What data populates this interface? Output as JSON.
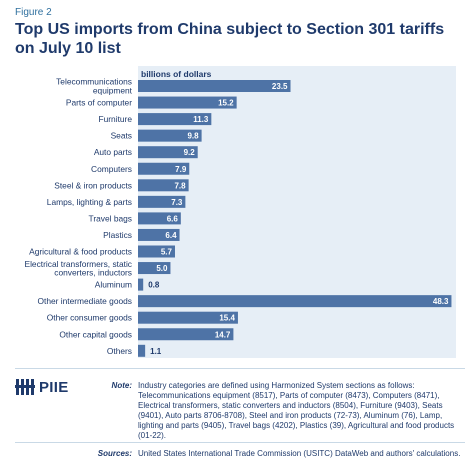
{
  "figure_label": "Figure 2",
  "title": "Top US imports from China subject to Section 301 tariffs on July 10 list",
  "chart_data": {
    "type": "bar",
    "orientation": "horizontal",
    "units_label": "billions of dollars",
    "categories": [
      "Telecommunications equipment",
      "Parts of computer",
      "Furniture",
      "Seats",
      "Auto parts",
      "Computers",
      "Steel & iron products",
      "Lamps, lighting & parts",
      "Travel bags",
      "Plastics",
      "Agricultural & food products",
      "Electrical transformers, static converters, inductors",
      "Aluminum",
      "Other intermediate goods",
      "Other consumer goods",
      "Other capital goods",
      "Others"
    ],
    "category_lines": [
      [
        "Telecommunications",
        "equipment"
      ],
      [
        "Parts of computer"
      ],
      [
        "Furniture"
      ],
      [
        "Seats"
      ],
      [
        "Auto parts"
      ],
      [
        "Computers"
      ],
      [
        "Steel & iron products"
      ],
      [
        "Lamps, lighting & parts"
      ],
      [
        "Travel bags"
      ],
      [
        "Plastics"
      ],
      [
        "Agricultural & food products"
      ],
      [
        "Electrical transformers, static",
        "converters, inductors"
      ],
      [
        "Aluminum"
      ],
      [
        "Other intermediate goods"
      ],
      [
        "Other consumer goods"
      ],
      [
        "Other capital goods"
      ],
      [
        "Others"
      ]
    ],
    "values": [
      23.5,
      15.2,
      11.3,
      9.8,
      9.2,
      7.9,
      7.8,
      7.3,
      6.6,
      6.4,
      5.7,
      5.0,
      0.8,
      48.3,
      15.4,
      14.7,
      1.1
    ],
    "value_labels": [
      "23.5",
      "15.2",
      "11.3",
      "9.8",
      "9.2",
      "7.9",
      "7.8",
      "7.3",
      "6.6",
      "6.4",
      "5.7",
      "5.0",
      "0.8",
      "48.3",
      "15.4",
      "14.7",
      "1.1"
    ],
    "xlim": [
      0,
      49
    ],
    "colors": {
      "bar": "#4e73a6",
      "panel": "#e6eef6",
      "label": "#1f3a6b",
      "value_inside": "#ffffff",
      "value_outside": "#1f3a6b"
    }
  },
  "logo_text": "PIIE",
  "note": {
    "head": "Note:",
    "text": "Industry categories are defined using Harmonized System sections as follows: Telecommunications equipment (8517), Parts of computer (8473), Computers (8471), Electrical transformers, static converters and inductors (8504), Furniture (9403), Seats (9401), Auto parts  8706-8708), Steel and iron products (72-73), Aluminum (76), Lamp, lighting and parts (9405), Travel bags (4202), Plastics (39), Agricultural and food products (01-22)."
  },
  "sources": {
    "head": "Sources:",
    "text": "United States International Trade Commission (USITC) DataWeb and authors' calculations."
  }
}
